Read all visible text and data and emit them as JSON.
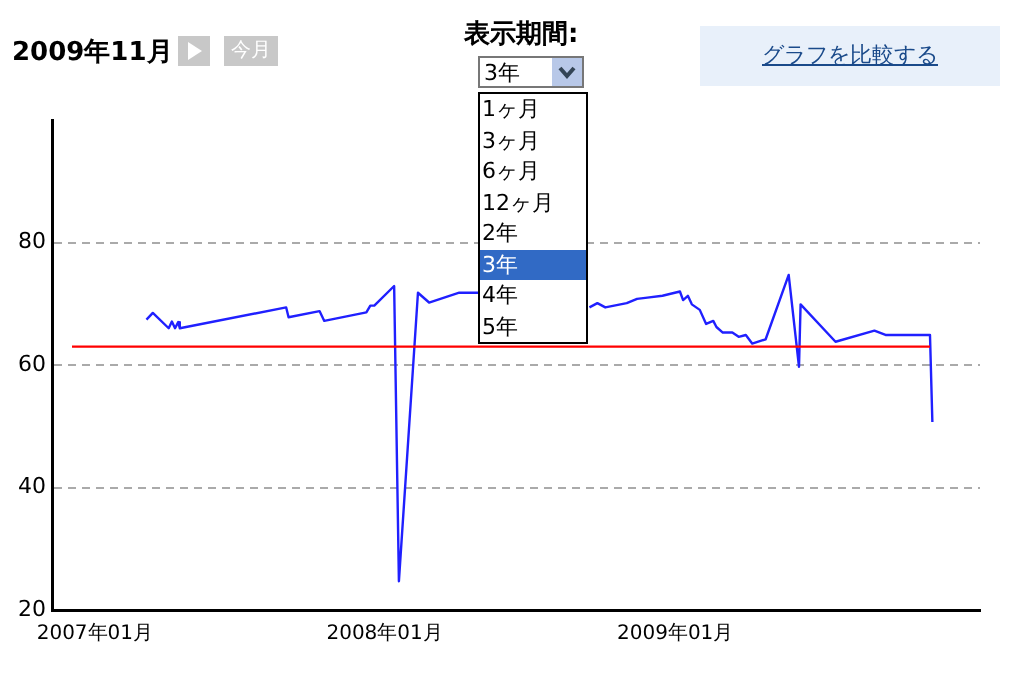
{
  "chart_data": {
    "type": "line",
    "title": "2009年11月",
    "annotations": [
      "今月",
      "表示期間:",
      "3年",
      "1ヶ月",
      "3ヶ月",
      "6ヶ月",
      "12ヶ月",
      "2年",
      "3年",
      "4年",
      "5年",
      "グラフを比較する"
    ],
    "series": [
      {
        "color": "#2020ff",
        "x": [
          "2007-03-07",
          "2007-03-15",
          "2007-04-04",
          "2007-04-08",
          "2007-04-12",
          "2007-04-16",
          "2007-04-18",
          "2007-08-30",
          "2007-09-02",
          "2007-10-11",
          "2007-10-17",
          "2007-12-09",
          "2007-12-14",
          "2007-12-19",
          "2008-01-13",
          "2008-01-19",
          "2008-02-12",
          "2008-02-26",
          "2008-04-04",
          "2008-04-29",
          null,
          "2008-09-15",
          "2008-09-25",
          "2008-10-05",
          "2008-11-01",
          "2008-11-14",
          "2008-11-27",
          "2008-12-16",
          "2009-01-07",
          "2009-01-11",
          "2009-01-17",
          "2009-01-22",
          "2009-02-01",
          "2009-02-09",
          "2009-02-18",
          "2009-02-22",
          "2009-03-02",
          "2009-03-14",
          "2009-03-22",
          "2009-03-31",
          "2009-04-08",
          "2009-04-25",
          "2009-05-24",
          "2009-06-06",
          "2009-06-08",
          "2009-07-22",
          "2009-09-09",
          "2009-09-23",
          "2009-11-18",
          "2009-11-21"
        ],
        "values": [
          67.4,
          68.5,
          66,
          67.1,
          66,
          67,
          66,
          69.4,
          67.8,
          68.8,
          67.2,
          68.6,
          69.7,
          69.7,
          72.9,
          24.7,
          71.8,
          70.2,
          71.8,
          71.8,
          null,
          69.4,
          70.1,
          69.4,
          70.1,
          70.8,
          71,
          71.3,
          72,
          70.6,
          71.3,
          69.9,
          69,
          66.7,
          67.2,
          66.2,
          65.3,
          65.3,
          64.6,
          64.9,
          63.5,
          64.2,
          74.7,
          59.7,
          69.9,
          63.8,
          65.6,
          64.9,
          64.9,
          50.7
        ]
      }
    ],
    "xlim": [
      "2006-11-08",
      "2010-01-20"
    ],
    "xticks": [
      {
        "value": "2007-01",
        "label": "2007年01月"
      },
      {
        "value": "2008-01",
        "label": "2008年01月"
      },
      {
        "value": "2009-01",
        "label": "2009年01月"
      }
    ],
    "ylim": [
      20,
      100
    ],
    "yticks": [
      20,
      40,
      60,
      80
    ],
    "ref_lines": [
      {
        "axis": "y",
        "value": 63,
        "color": "#ff0000"
      }
    ],
    "grid": "y",
    "legend": false,
    "marker": "none",
    "line_style": "solid"
  }
}
